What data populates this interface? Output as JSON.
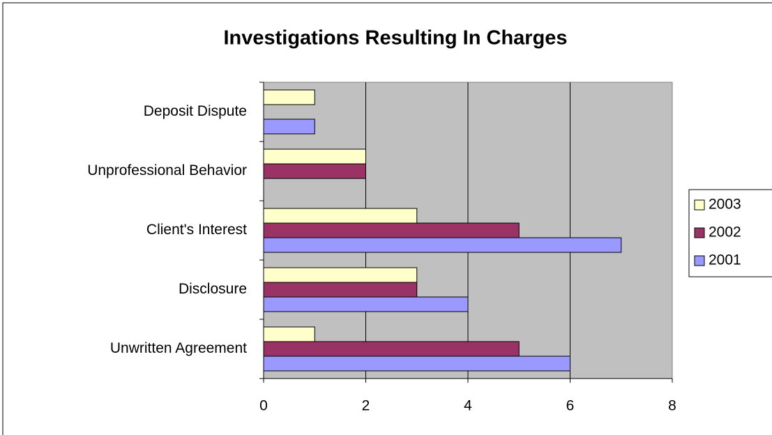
{
  "chart_data": {
    "type": "barh",
    "title": "Investigations Resulting In Charges",
    "categories": [
      "Deposit Dispute",
      "Unprofessional Behavior",
      "Client's Interest",
      "Disclosure",
      "Unwritten Agreement"
    ],
    "series": [
      {
        "name": "2003",
        "color": "#ffffcc",
        "values": [
          1,
          2,
          3,
          3,
          1
        ]
      },
      {
        "name": "2002",
        "color": "#993366",
        "values": [
          null,
          2,
          5,
          3,
          5
        ]
      },
      {
        "name": "2001",
        "color": "#9999ff",
        "values": [
          1,
          null,
          7,
          4,
          6
        ]
      }
    ],
    "xlim": [
      0,
      8
    ],
    "xticks": [
      0,
      2,
      4,
      6,
      8
    ],
    "grid": true,
    "legend": "right"
  }
}
